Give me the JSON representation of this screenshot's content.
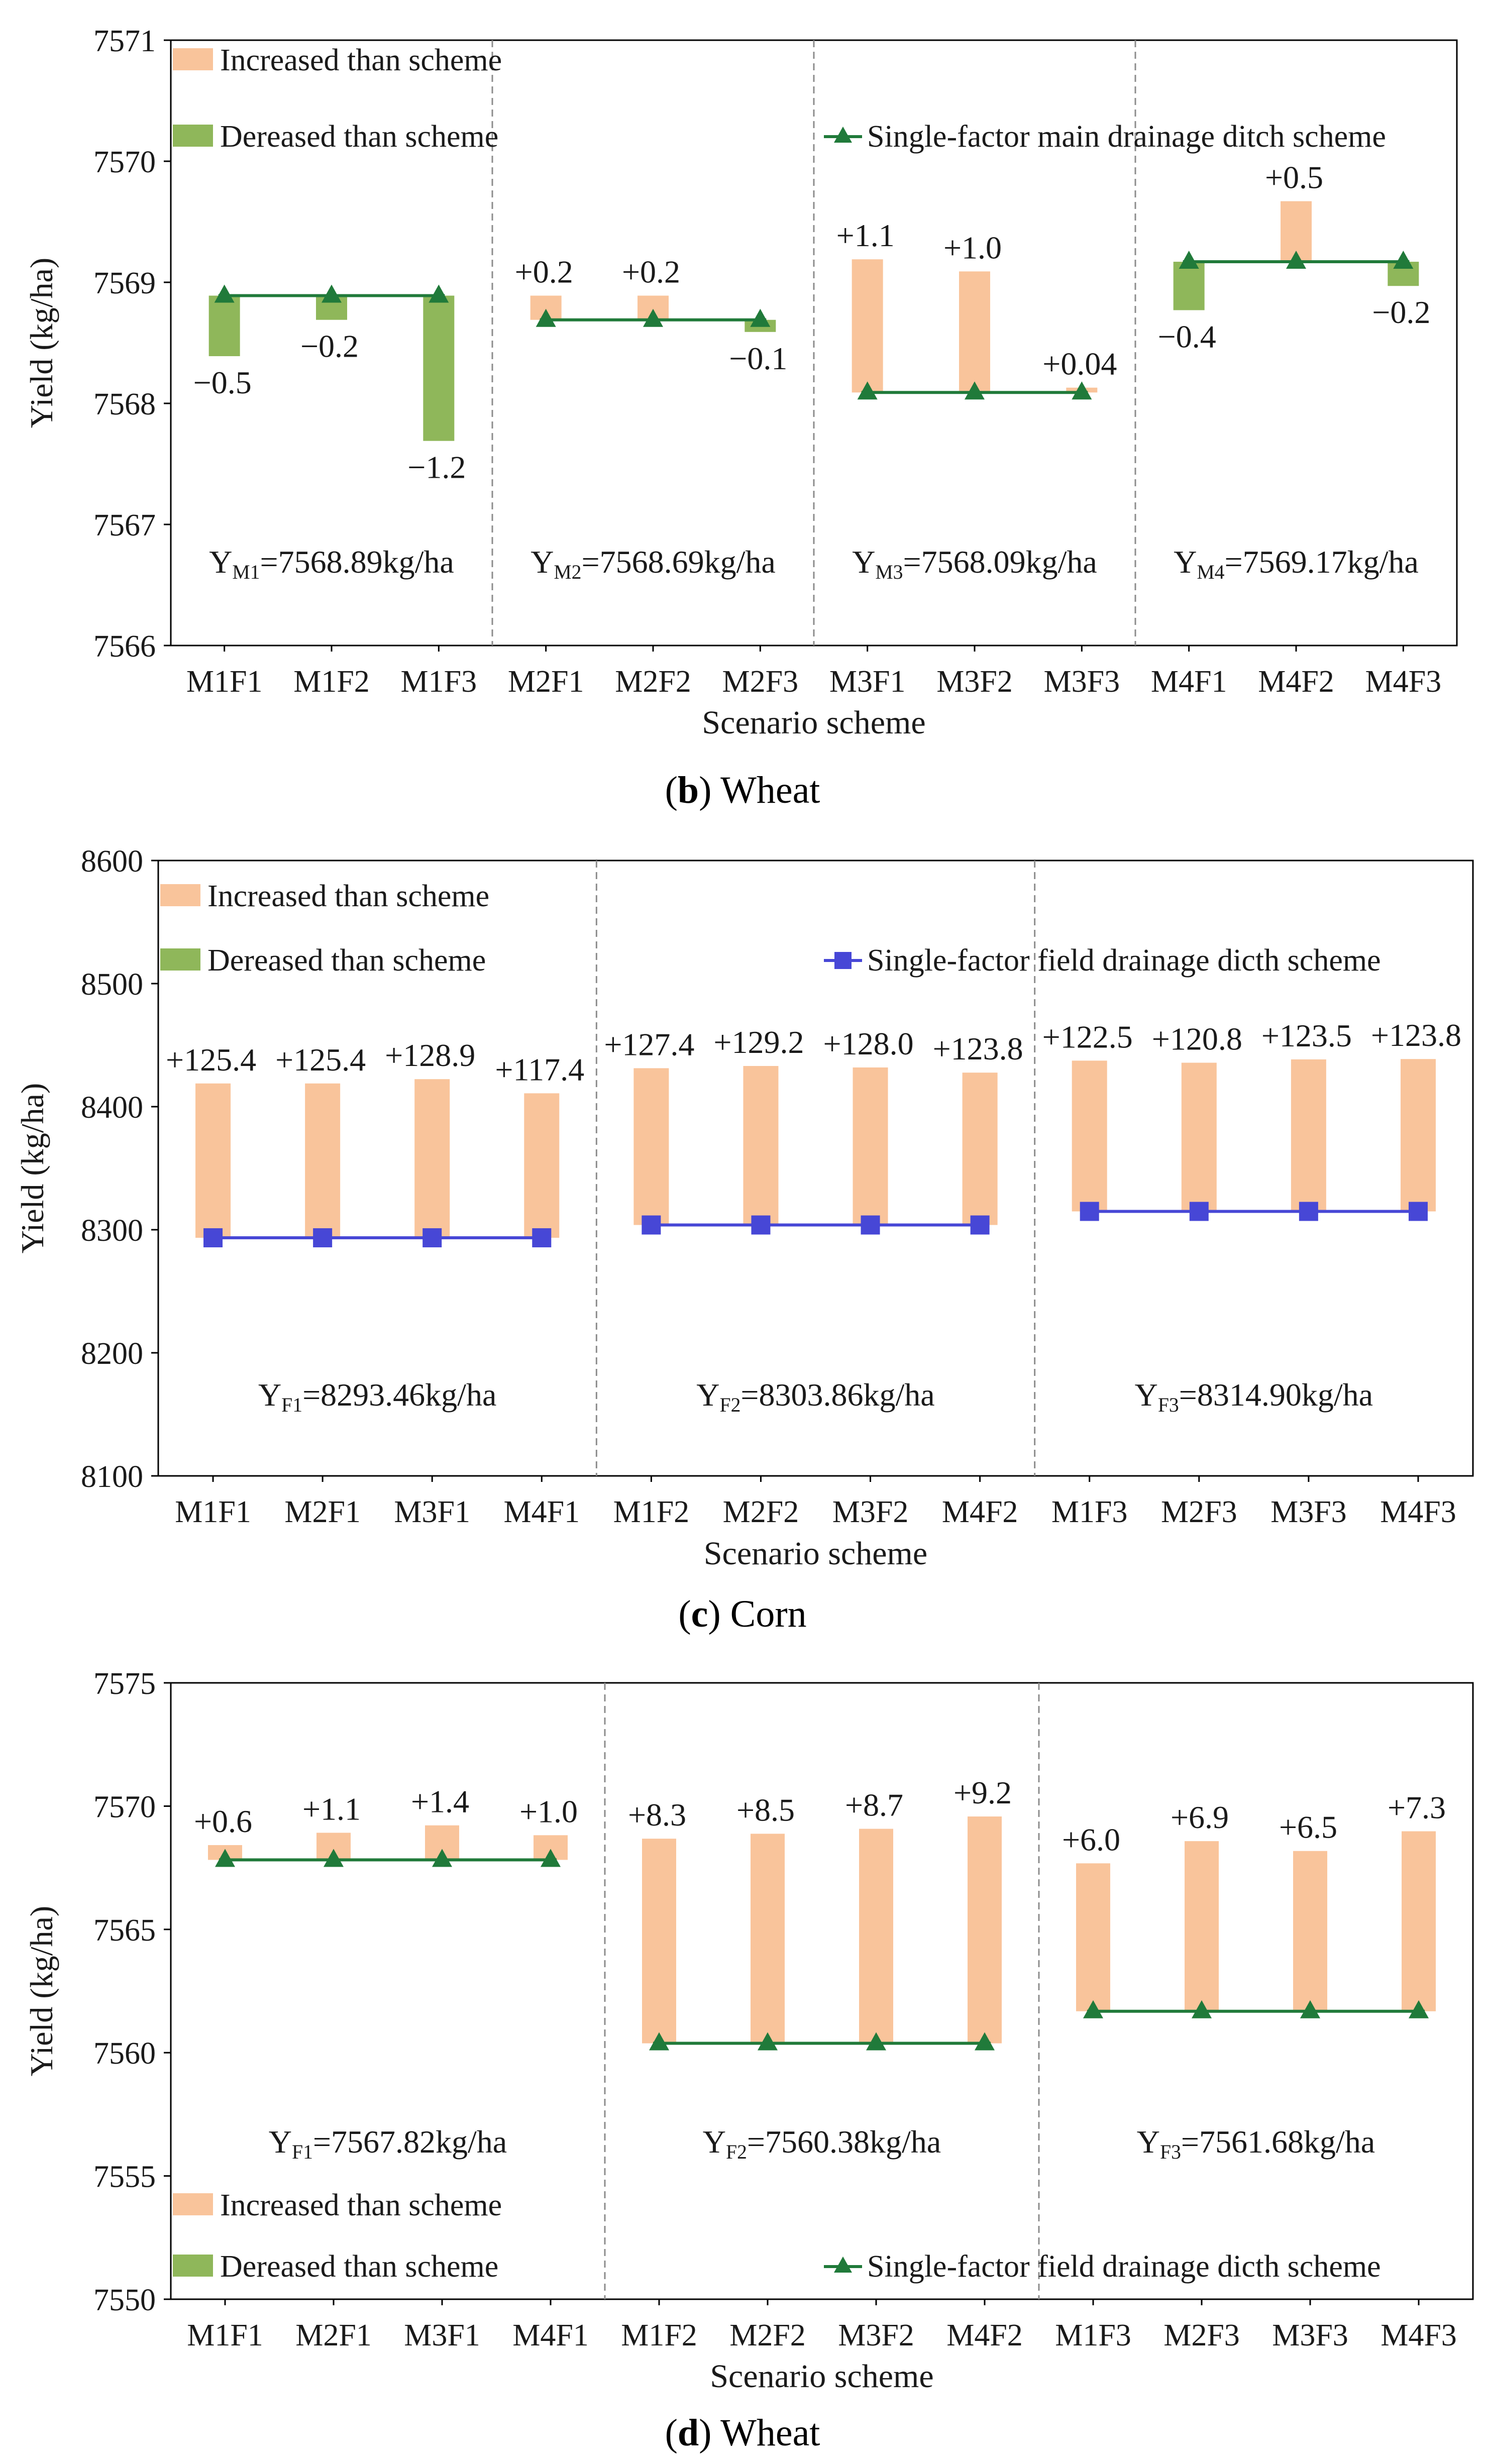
{
  "chart_data": [
    {
      "id": "b",
      "type": "bar",
      "caption_letter": "b",
      "caption_text": "Wheat",
      "title": "",
      "xlabel": "Scenario scheme",
      "ylabel": "Yield (kg/ha)",
      "ylim": [
        7566,
        7571
      ],
      "yticks": [
        "7566",
        "7567",
        "7568",
        "7569",
        "7570",
        "7571"
      ],
      "legend": [
        {
          "kind": "increase",
          "label": "Increased than scheme",
          "color": "#f9c49b"
        },
        {
          "kind": "decrease",
          "label": "Dereased than scheme",
          "color": "#8fb75a"
        },
        {
          "kind": "line",
          "label": "Single-factor main drainage ditch scheme",
          "color": "#207a3a",
          "marker": "triangle"
        }
      ],
      "groups": [
        {
          "categories": [
            "M1F1",
            "M1F2",
            "M1F3"
          ],
          "baseline": 7568.89,
          "label_sub": "M1",
          "label_value": "=7568.89kg/ha",
          "changes": [
            -0.5,
            -0.2,
            -1.2
          ],
          "change_labels": [
            "−0.5",
            "−0.2",
            "−1.2"
          ]
        },
        {
          "categories": [
            "M2F1",
            "M2F2",
            "M2F3"
          ],
          "baseline": 7568.69,
          "label_sub": "M2",
          "label_value": "=7568.69kg/ha",
          "changes": [
            0.2,
            0.2,
            -0.1
          ],
          "change_labels": [
            "+0.2",
            "+0.2",
            "−0.1"
          ]
        },
        {
          "categories": [
            "M3F1",
            "M3F2",
            "M3F3"
          ],
          "baseline": 7568.09,
          "label_sub": "M3",
          "label_value": "=7568.09kg/ha",
          "changes": [
            1.1,
            1.0,
            0.04
          ],
          "change_labels": [
            "+1.1",
            "+1.0",
            "+0.04"
          ]
        },
        {
          "categories": [
            "M4F1",
            "M4F2",
            "M4F3"
          ],
          "baseline": 7569.17,
          "label_sub": "M4",
          "label_value": "=7569.17kg/ha",
          "changes": [
            -0.4,
            0.5,
            -0.2
          ],
          "change_labels": [
            "−0.4",
            "+0.5",
            "−0.2"
          ]
        }
      ]
    },
    {
      "id": "c",
      "type": "bar",
      "caption_letter": "c",
      "caption_text": "Corn",
      "title": "",
      "xlabel": "Scenario scheme",
      "ylabel": "Yield (kg/ha)",
      "ylim": [
        8100,
        8600
      ],
      "yticks": [
        "8100",
        "8200",
        "8300",
        "8400",
        "8500",
        "8600"
      ],
      "legend": [
        {
          "kind": "increase",
          "label": "Increased than scheme",
          "color": "#f9c49b"
        },
        {
          "kind": "decrease",
          "label": "Dereased than scheme",
          "color": "#8fb75a"
        },
        {
          "kind": "line",
          "label": "Single-factor field  drainage dicth scheme",
          "color": "#4747d6",
          "marker": "square"
        }
      ],
      "groups": [
        {
          "categories": [
            "M1F1",
            "M2F1",
            "M3F1",
            "M4F1"
          ],
          "baseline": 8293.46,
          "label_sub": "F1",
          "label_value": "=8293.46kg/ha",
          "changes": [
            125.4,
            125.4,
            128.9,
            117.4
          ],
          "change_labels": [
            "+125.4",
            "+125.4",
            "+128.9",
            "+117.4"
          ]
        },
        {
          "categories": [
            "M1F2",
            "M2F2",
            "M3F2",
            "M4F2"
          ],
          "baseline": 8303.86,
          "label_sub": "F2",
          "label_value": "=8303.86kg/ha",
          "changes": [
            127.4,
            129.2,
            128.0,
            123.8
          ],
          "change_labels": [
            "+127.4",
            "+129.2",
            "+128.0",
            "+123.8"
          ]
        },
        {
          "categories": [
            "M1F3",
            "M2F3",
            "M3F3",
            "M4F3"
          ],
          "baseline": 8314.9,
          "label_sub": "F3",
          "label_value": "=8314.90kg/ha",
          "changes": [
            122.5,
            120.8,
            123.5,
            123.8
          ],
          "change_labels": [
            "+122.5",
            "+120.8",
            "+123.5",
            "+123.8"
          ]
        }
      ]
    },
    {
      "id": "d",
      "type": "bar",
      "caption_letter": "d",
      "caption_text": "Wheat",
      "title": "",
      "xlabel": "Scenario scheme",
      "ylabel": "Yield (kg/ha)",
      "ylim": [
        7550,
        7575
      ],
      "yticks": [
        "7550",
        "7555",
        "7560",
        "7565",
        "7570",
        "7575"
      ],
      "legend": [
        {
          "kind": "increase",
          "label": "Increased than scheme",
          "color": "#f9c49b"
        },
        {
          "kind": "decrease",
          "label": "Dereased than scheme",
          "color": "#8fb75a"
        },
        {
          "kind": "line",
          "label": "Single-factor field  drainage dicth scheme",
          "color": "#207a3a",
          "marker": "triangle"
        }
      ],
      "groups": [
        {
          "categories": [
            "M1F1",
            "M2F1",
            "M3F1",
            "M4F1"
          ],
          "baseline": 7567.82,
          "label_sub": "F1",
          "label_value": "=7567.82kg/ha",
          "changes": [
            0.6,
            1.1,
            1.4,
            1.0
          ],
          "change_labels": [
            "+0.6",
            "+1.1",
            "+1.4",
            "+1.0"
          ]
        },
        {
          "categories": [
            "M1F2",
            "M2F2",
            "M3F2",
            "M4F2"
          ],
          "baseline": 7560.38,
          "label_sub": "F2",
          "label_value": "=7560.38kg/ha",
          "changes": [
            8.3,
            8.5,
            8.7,
            9.2
          ],
          "change_labels": [
            "+8.3",
            "+8.5",
            "+8.7",
            "+9.2"
          ]
        },
        {
          "categories": [
            "M1F3",
            "M2F3",
            "M3F3",
            "M4F3"
          ],
          "baseline": 7561.68,
          "label_sub": "F3",
          "label_value": "=7561.68kg/ha",
          "changes": [
            6.0,
            6.9,
            6.5,
            7.3
          ],
          "change_labels": [
            "+6.0",
            "+6.9",
            "+6.5",
            "+7.3"
          ]
        }
      ]
    }
  ]
}
